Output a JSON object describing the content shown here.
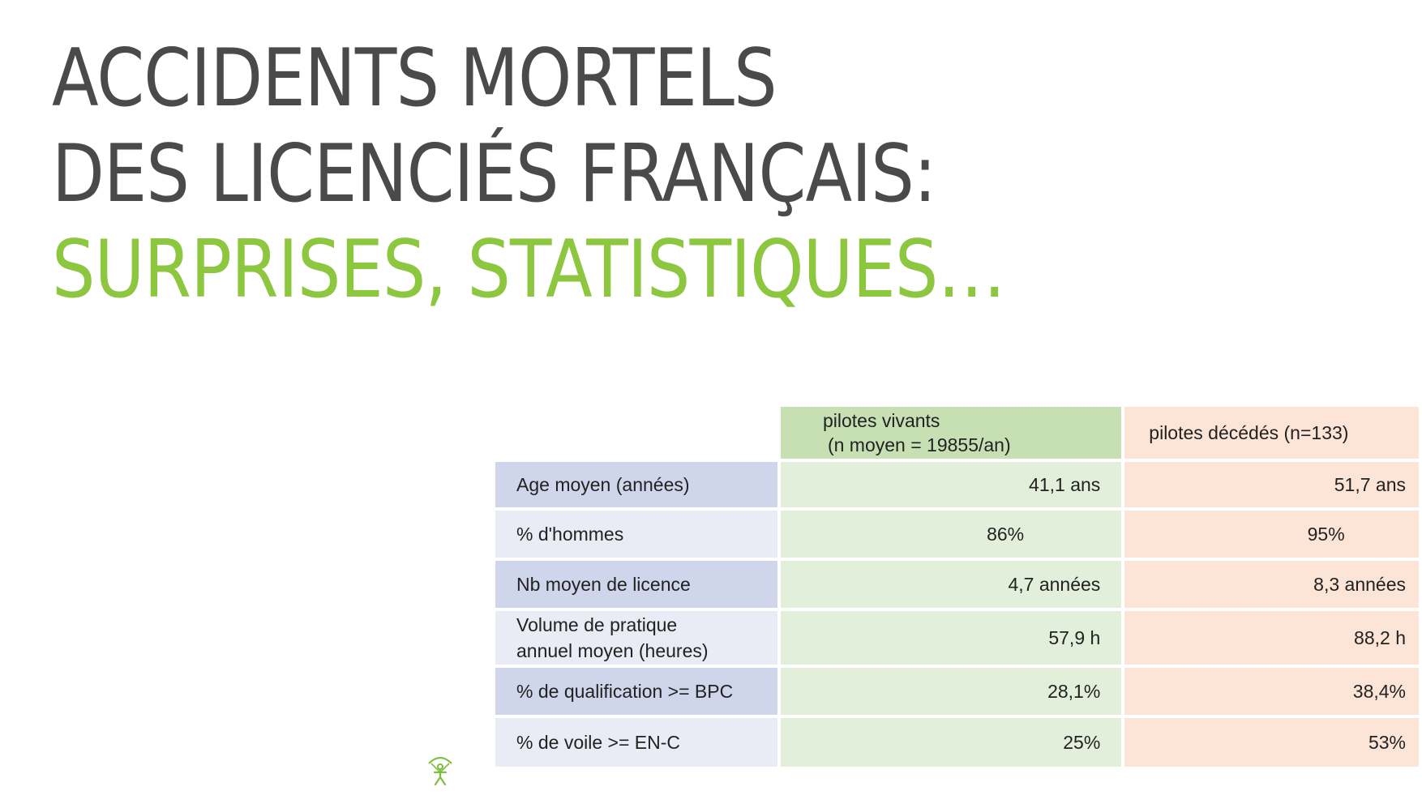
{
  "title": {
    "line1": "ACCIDENTS MORTELS",
    "line2": "DES LICENCIÉS FRANÇAIS:",
    "line3": "SURPRISES, STATISTIQUES…"
  },
  "colors": {
    "title_dark": "#4a4a4a",
    "title_accent": "#8dc63f",
    "label_dark": "#cfd5ea",
    "label_light": "#e9ebf5",
    "alive_header": "#c6e0b4",
    "alive_cell": "#e2efda",
    "dead": "#fce4d6"
  },
  "table": {
    "header_alive_line1": "pilotes vivants",
    "header_alive_line2": "(n moyen = 19855/an)",
    "header_dead": "pilotes décédés (n=133)",
    "rows": [
      {
        "label_line1": "Age moyen (années)",
        "label_line2": "",
        "alive": "41,1 ans",
        "dead": "51,7 ans"
      },
      {
        "label_line1": "% d'hommes",
        "label_line2": "",
        "alive": "86%",
        "dead": "95%"
      },
      {
        "label_line1": "Nb moyen de licence",
        "label_line2": "",
        "alive": "4,7 années",
        "dead": "8,3 années"
      },
      {
        "label_line1": "Volume de pratique",
        "label_line2": "annuel moyen (heures)",
        "alive": "57,9 h",
        "dead": "88,2 h"
      },
      {
        "label_line1": "% de qualification >= BPC",
        "label_line2": "",
        "alive": "28,1%",
        "dead": "38,4%"
      },
      {
        "label_line1": "% de voile >= EN-C",
        "label_line2": "",
        "alive": "25%",
        "dead": "53%"
      }
    ]
  },
  "logo_icon": "paraglider-pilot-icon"
}
